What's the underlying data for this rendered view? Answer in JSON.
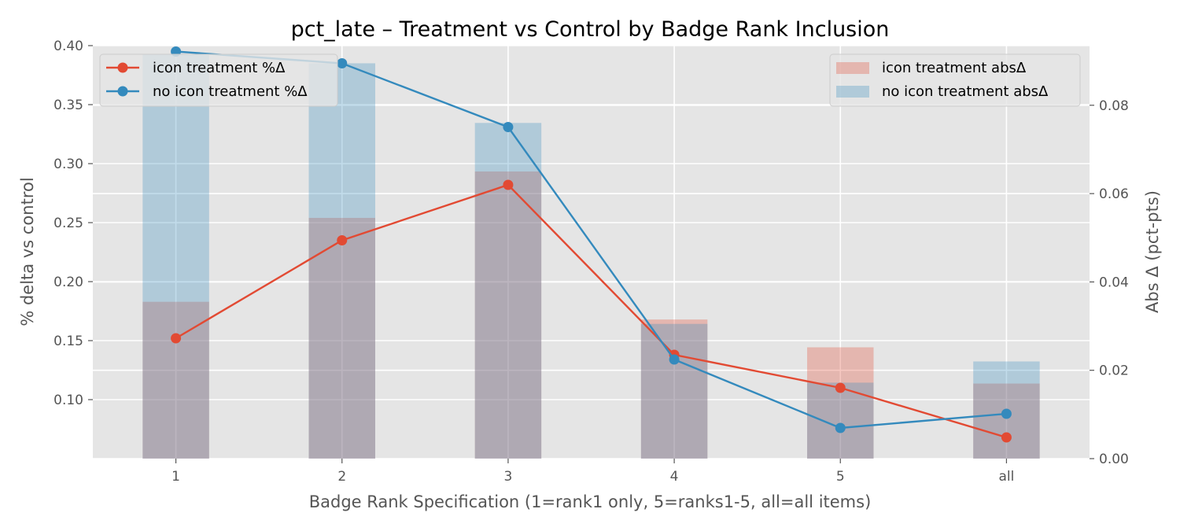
{
  "chart_data": {
    "type": "bar+line",
    "title": "pct_late – Treatment vs Control by Badge Rank Inclusion",
    "xlabel": "Badge Rank Specification (1=rank1 only, 5=ranks1-5, all=all items)",
    "ylabel_left": "% delta vs control",
    "ylabel_right": "Abs Δ (pct-pts)",
    "categories": [
      "1",
      "2",
      "3",
      "4",
      "5",
      "all"
    ],
    "left_axis": {
      "ylim": [
        0.05,
        0.4
      ],
      "ticks": [
        0.1,
        0.15,
        0.2,
        0.25,
        0.3,
        0.35,
        0.4
      ],
      "tick_labels": [
        "0.10",
        "0.15",
        "0.20",
        "0.25",
        "0.30",
        "0.35",
        "0.40"
      ]
    },
    "right_axis": {
      "ylim": [
        0.0,
        0.0935
      ],
      "ticks": [
        0.0,
        0.02,
        0.04,
        0.06,
        0.08
      ],
      "tick_labels": [
        "0.00",
        "0.02",
        "0.04",
        "0.06",
        "0.08"
      ]
    },
    "line_series": [
      {
        "name": "icon treatment %Δ",
        "color": "#E24A33",
        "values": [
          0.152,
          0.235,
          0.282,
          0.138,
          0.11,
          0.068
        ]
      },
      {
        "name": "no icon treatment %Δ",
        "color": "#348ABD",
        "values": [
          0.395,
          0.385,
          0.331,
          0.134,
          0.076,
          0.088
        ]
      }
    ],
    "bar_series": [
      {
        "name": "icon treatment absΔ",
        "color": "#E24A33",
        "values": [
          0.0355,
          0.0545,
          0.065,
          0.0315,
          0.0252,
          0.017
        ]
      },
      {
        "name": "no icon treatment absΔ",
        "color": "#348ABD",
        "values": [
          0.0915,
          0.0895,
          0.076,
          0.0305,
          0.0172,
          0.022
        ]
      }
    ],
    "grid": true,
    "legend_lines": "top-left",
    "legend_bars": "top-right"
  }
}
